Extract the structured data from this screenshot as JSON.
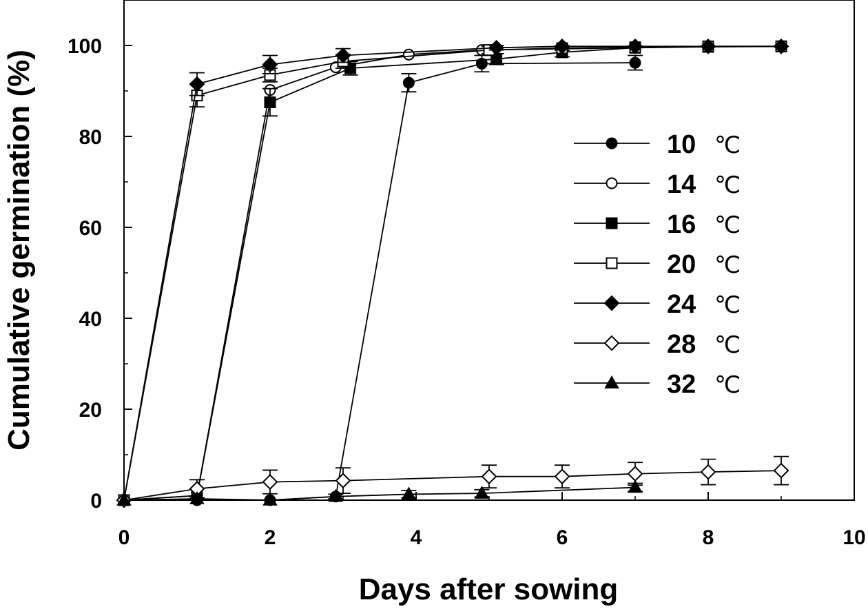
{
  "chart_data": {
    "type": "line",
    "title": "",
    "xlabel": "Days after sowing",
    "ylabel": "Cumulative germination (%)",
    "xlim": [
      0,
      10
    ],
    "ylim": [
      0,
      110
    ],
    "x_ticks": [
      0,
      2,
      4,
      6,
      8,
      10
    ],
    "y_ticks": [
      0,
      20,
      40,
      60,
      80,
      100
    ],
    "x_minor_ticks": [
      1,
      3,
      5,
      7,
      9
    ],
    "y_minor_ticks": [
      10,
      30,
      50,
      70,
      90
    ],
    "grid": false,
    "legend_position": "center-right",
    "series": [
      {
        "name": "10",
        "unit": "℃",
        "marker": "circle",
        "filled": true,
        "x": [
          0,
          1,
          2,
          2.9,
          3.9,
          4.9,
          7
        ],
        "y": [
          0,
          0,
          0,
          0.8,
          91.8,
          96,
          96.2
        ],
        "err": [
          0,
          0,
          0,
          0,
          2,
          1.8,
          1.6
        ]
      },
      {
        "name": "14",
        "unit": "℃",
        "marker": "circle",
        "filled": false,
        "x": [
          0,
          1,
          2,
          2.9,
          3.9,
          4.9,
          7
        ],
        "y": [
          0,
          1,
          90.2,
          95.2,
          98,
          99,
          99.5
        ],
        "err": [
          0,
          0,
          0,
          0,
          0,
          0,
          0
        ]
      },
      {
        "name": "16",
        "unit": "℃",
        "marker": "square",
        "filled": true,
        "x": [
          0,
          1,
          2,
          3.1,
          5.1,
          6,
          7,
          8,
          9
        ],
        "y": [
          0,
          1,
          87.5,
          95,
          97,
          98.5,
          99.5,
          99.7,
          99.8
        ],
        "err": [
          0,
          0,
          3,
          1.5,
          1.2,
          1,
          0,
          0,
          0
        ]
      },
      {
        "name": "20",
        "unit": "℃",
        "marker": "square",
        "filled": false,
        "x": [
          0,
          1,
          2,
          3,
          5,
          6,
          7,
          8,
          9
        ],
        "y": [
          0,
          89,
          93.5,
          96.5,
          99,
          99.4,
          99.6,
          99.8,
          99.8
        ],
        "err": [
          0,
          2.5,
          1.5,
          1.5,
          0.8,
          0.5,
          0,
          0,
          0
        ]
      },
      {
        "name": "24",
        "unit": "℃",
        "marker": "diamond",
        "filled": true,
        "x": [
          0,
          1,
          2,
          3,
          5.1,
          6,
          7,
          8,
          9
        ],
        "y": [
          0,
          91.5,
          95.8,
          97.8,
          99.5,
          99.8,
          99.8,
          99.8,
          99.8
        ],
        "err": [
          0,
          2.5,
          2,
          1.5,
          0.5,
          0,
          0,
          0,
          0
        ]
      },
      {
        "name": "28",
        "unit": "℃",
        "marker": "diamond",
        "filled": false,
        "x": [
          0,
          1,
          2,
          3,
          5,
          6,
          7,
          8,
          9
        ],
        "y": [
          0,
          2.5,
          4,
          4.3,
          5.2,
          5.2,
          5.8,
          6.2,
          6.5
        ],
        "err": [
          0,
          2,
          2.6,
          2.8,
          2.5,
          2.5,
          2.5,
          2.8,
          3.1
        ]
      },
      {
        "name": "32",
        "unit": "℃",
        "marker": "triangle",
        "filled": true,
        "x": [
          0,
          1,
          2,
          2.9,
          3.9,
          4.9,
          7
        ],
        "y": [
          0,
          0.3,
          0,
          0.8,
          1.3,
          1.5,
          2.8
        ],
        "err": [
          0,
          0,
          0,
          0.5,
          0.8,
          0.8,
          0.9
        ]
      }
    ]
  }
}
